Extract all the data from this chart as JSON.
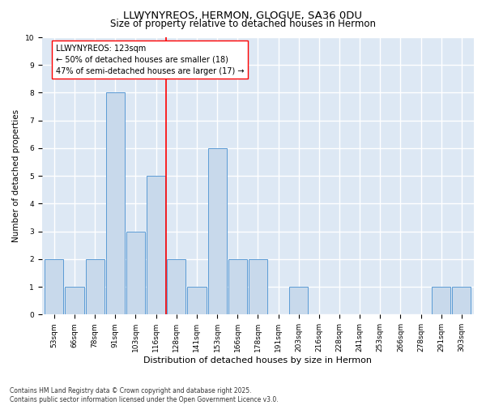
{
  "title": "LLWYNYREOS, HERMON, GLOGUE, SA36 0DU",
  "subtitle": "Size of property relative to detached houses in Hermon",
  "xlabel": "Distribution of detached houses by size in Hermon",
  "ylabel": "Number of detached properties",
  "categories": [
    "53sqm",
    "66sqm",
    "78sqm",
    "91sqm",
    "103sqm",
    "116sqm",
    "128sqm",
    "141sqm",
    "153sqm",
    "166sqm",
    "178sqm",
    "191sqm",
    "203sqm",
    "216sqm",
    "228sqm",
    "241sqm",
    "253sqm",
    "266sqm",
    "278sqm",
    "291sqm",
    "303sqm"
  ],
  "values": [
    2,
    1,
    2,
    8,
    3,
    5,
    2,
    1,
    6,
    2,
    2,
    0,
    1,
    0,
    0,
    0,
    0,
    0,
    0,
    1,
    1
  ],
  "bar_color": "#c8d9eb",
  "bar_edge_color": "#5b9bd5",
  "annotation_text": "LLWYNYREOS: 123sqm\n← 50% of detached houses are smaller (18)\n47% of semi-detached houses are larger (17) →",
  "annotation_box_color": "white",
  "annotation_box_edge_color": "red",
  "vline_color": "red",
  "vline_x_index": 5.5,
  "ylim": [
    0,
    10
  ],
  "yticks": [
    0,
    1,
    2,
    3,
    4,
    5,
    6,
    7,
    8,
    9,
    10
  ],
  "background_color": "#dde8f4",
  "grid_color": "white",
  "footer": "Contains HM Land Registry data © Crown copyright and database right 2025.\nContains public sector information licensed under the Open Government Licence v3.0.",
  "title_fontsize": 9.5,
  "subtitle_fontsize": 8.5,
  "xlabel_fontsize": 8,
  "ylabel_fontsize": 7.5,
  "tick_fontsize": 6.5,
  "annotation_fontsize": 7,
  "footer_fontsize": 5.5
}
